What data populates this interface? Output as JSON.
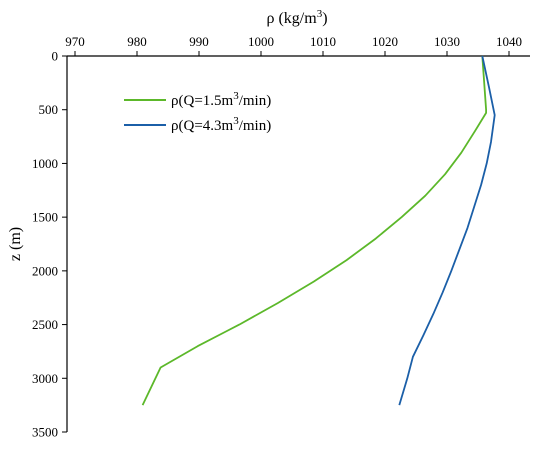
{
  "chart_data": {
    "type": "line",
    "xlabel_main": "ρ (kg/m",
    "xlabel_sup": "3",
    "xlabel_tail": ")",
    "ylabel": "z (m)",
    "xlim": [
      970,
      1040
    ],
    "ylim": [
      0,
      3500
    ],
    "x_ticks": [
      970,
      980,
      990,
      1000,
      1010,
      1020,
      1030,
      1040
    ],
    "y_ticks": [
      0,
      500,
      1000,
      1500,
      2000,
      2500,
      3000,
      3500
    ],
    "series": [
      {
        "legend_main": "ρ(Q=1.5m",
        "legend_sup": "3",
        "legend_tail": "/min)",
        "color": "#5cb82a",
        "points": [
          [
            1035.7,
            0
          ],
          [
            1036.3,
            500
          ],
          [
            1036.3,
            530
          ],
          [
            1034.5,
            700
          ],
          [
            1032.3,
            900
          ],
          [
            1029.7,
            1100
          ],
          [
            1026.5,
            1300
          ],
          [
            1022.7,
            1500
          ],
          [
            1018.5,
            1700
          ],
          [
            1013.8,
            1900
          ],
          [
            1008.5,
            2100
          ],
          [
            1002.7,
            2300
          ],
          [
            996.5,
            2500
          ],
          [
            994.5,
            2560
          ],
          [
            989.8,
            2700
          ],
          [
            983.8,
            2900
          ],
          [
            980.9,
            3250
          ]
        ]
      },
      {
        "legend_main": "ρ(Q=4.3m",
        "legend_sup": "3",
        "legend_tail": "/min)",
        "color": "#1b5fa8",
        "points": [
          [
            1035.7,
            0
          ],
          [
            1036.8,
            300
          ],
          [
            1037.7,
            550
          ],
          [
            1037.1,
            800
          ],
          [
            1036.4,
            1000
          ],
          [
            1035.5,
            1200
          ],
          [
            1034.4,
            1400
          ],
          [
            1033.3,
            1600
          ],
          [
            1032.0,
            1800
          ],
          [
            1030.7,
            2000
          ],
          [
            1029.3,
            2200
          ],
          [
            1027.8,
            2400
          ],
          [
            1026.2,
            2600
          ],
          [
            1024.5,
            2800
          ],
          [
            1023.6,
            3000
          ],
          [
            1022.3,
            3250
          ]
        ]
      }
    ]
  }
}
